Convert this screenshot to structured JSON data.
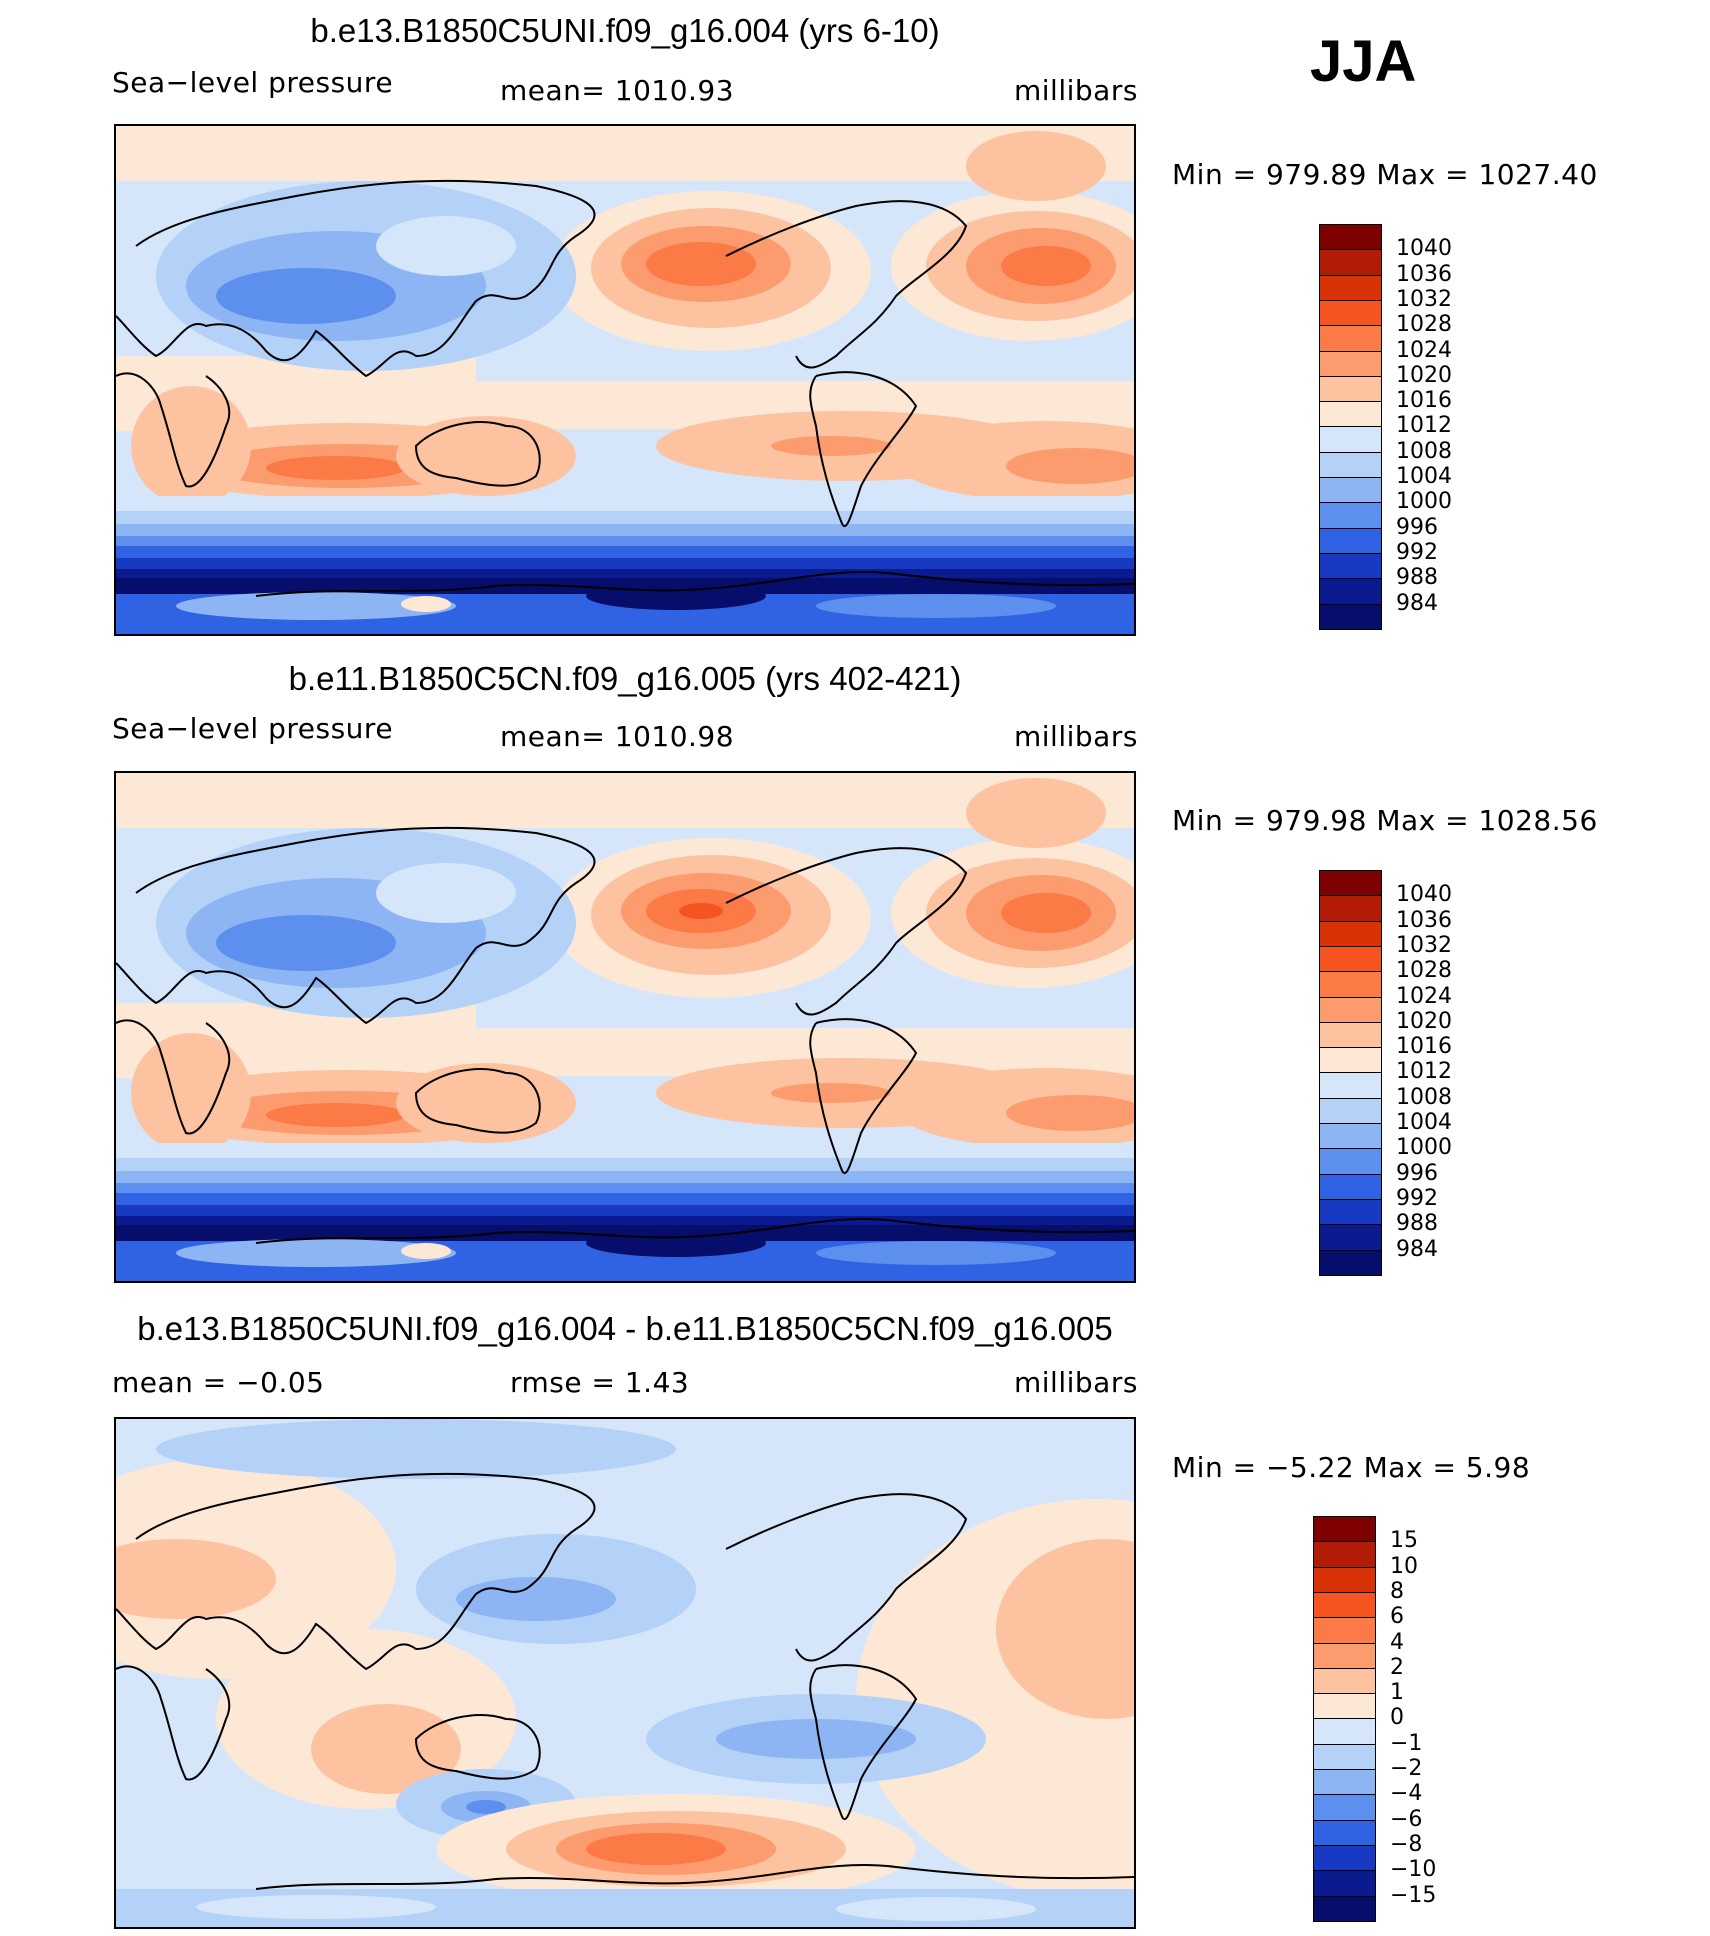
{
  "season": "JJA",
  "panels": [
    {
      "title": "b.e13.B1850C5UNI.f09_g16.004 (yrs 6-10)",
      "left_text": "Sea−level pressure",
      "mid_text": "mean=  1010.93",
      "units": "millibars",
      "minmax": "Min  =  979.89  Max  =  1027.40",
      "map_desc": "Sea-level pressure field, global map"
    },
    {
      "title": "b.e11.B1850C5CN.f09_g16.005 (yrs 402-421)",
      "left_text": "Sea−level pressure",
      "mid_text": "mean=  1010.98",
      "units": "millibars",
      "minmax": "Min  =  979.98  Max  =  1028.56",
      "map_desc": "Sea-level pressure field, global map"
    },
    {
      "title": "b.e13.B1850C5UNI.f09_g16.004 - b.e11.B1850C5CN.f09_g16.005",
      "left_text": "mean  =     −0.05",
      "mid_text": "rmse  =      1.43",
      "units": "millibars",
      "minmax": "Min  =     −5.22  Max  =       5.98",
      "map_desc": "Difference field, global map"
    }
  ],
  "chart_data": [
    {
      "type": "heatmap",
      "title": "b.e13.B1850C5UNI.f09_g16.004 (yrs 6-10)",
      "variable": "Sea-level pressure",
      "units": "millibars",
      "mean": 1010.93,
      "min": 979.89,
      "max": 1027.4,
      "colorbar_levels": [
        "1040",
        "1036",
        "1032",
        "1028",
        "1024",
        "1020",
        "1016",
        "1012",
        "1008",
        "1004",
        "1000",
        "996",
        "992",
        "988",
        "984"
      ],
      "colorbar_colors": [
        "#7f0000",
        "#b21b05",
        "#d93206",
        "#f55421",
        "#fb7a45",
        "#fc9c6e",
        "#fdc3a1",
        "#fde8d6",
        "#d6e6fa",
        "#b4d1f8",
        "#8db5f3",
        "#5d8fee",
        "#2f63e3",
        "#1839c1",
        "#0b1a8f",
        "#070d6b"
      ]
    },
    {
      "type": "heatmap",
      "title": "b.e11.B1850C5CN.f09_g16.005 (yrs 402-421)",
      "variable": "Sea-level pressure",
      "units": "millibars",
      "mean": 1010.98,
      "min": 979.98,
      "max": 1028.56,
      "colorbar_levels": [
        "1040",
        "1036",
        "1032",
        "1028",
        "1024",
        "1020",
        "1016",
        "1012",
        "1008",
        "1004",
        "1000",
        "996",
        "992",
        "988",
        "984"
      ],
      "colorbar_colors": [
        "#7f0000",
        "#b21b05",
        "#d93206",
        "#f55421",
        "#fb7a45",
        "#fc9c6e",
        "#fdc3a1",
        "#fde8d6",
        "#d6e6fa",
        "#b4d1f8",
        "#8db5f3",
        "#5d8fee",
        "#2f63e3",
        "#1839c1",
        "#0b1a8f",
        "#070d6b"
      ]
    },
    {
      "type": "heatmap",
      "title": "b.e13.B1850C5UNI.f09_g16.004 - b.e11.B1850C5CN.f09_g16.005",
      "variable": "Sea-level pressure difference",
      "units": "millibars",
      "mean": -0.05,
      "rmse": 1.43,
      "min": -5.22,
      "max": 5.98,
      "colorbar_levels": [
        "15",
        "10",
        "8",
        "6",
        "4",
        "2",
        "1",
        "0",
        "−1",
        "−2",
        "−4",
        "−6",
        "−8",
        "−10",
        "−15"
      ],
      "colorbar_colors": [
        "#7f0000",
        "#b21b05",
        "#d93206",
        "#f55421",
        "#fb7a45",
        "#fc9c6e",
        "#fdc3a1",
        "#fde8d6",
        "#d6e6fa",
        "#b4d1f8",
        "#8db5f3",
        "#5d8fee",
        "#2f63e3",
        "#1839c1",
        "#0b1a8f",
        "#070d6b"
      ]
    }
  ]
}
